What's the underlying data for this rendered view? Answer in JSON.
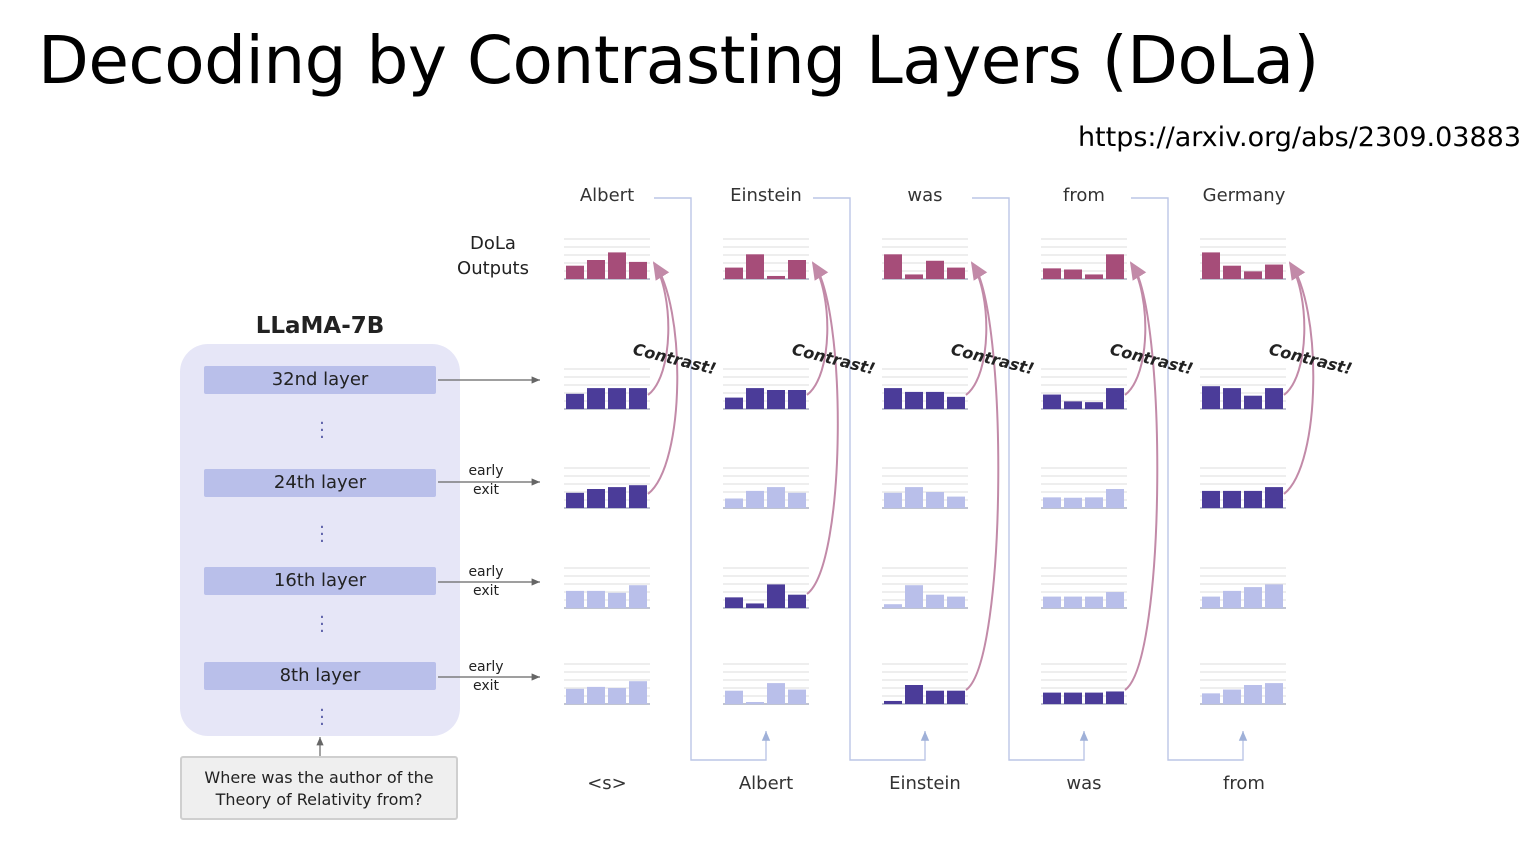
{
  "title": "Decoding by Contrasting Layers (DoLa)",
  "url": "https://arxiv.org/abs/2309.03883",
  "model": {
    "name": "LLaMA-7B",
    "layers": [
      "32nd layer",
      "24th layer",
      "16th layer",
      "8th layer"
    ],
    "early_exit_label": [
      "early",
      "exit"
    ]
  },
  "question": [
    "Where was the author of the",
    "Theory of Relativity from?"
  ],
  "dola_outputs_label": [
    "DoLa",
    "Outputs"
  ],
  "contrast_label": "Contrast!",
  "output_tokens": [
    "Albert",
    "Einstein",
    "was",
    "from",
    "Germany"
  ],
  "input_tokens": [
    "<s>",
    "Albert",
    "Einstein",
    "was",
    "from"
  ],
  "colors": {
    "output_bar": "#a64d79",
    "active_bar": "#4b3c99",
    "inactive_bar": "#b9bfea",
    "contrast_arrow": "#c28aa8",
    "model_box": "#e6e6f7"
  },
  "distributions": [
    {
      "token": "Albert",
      "dola": [
        0.35,
        0.5,
        0.7,
        0.45
      ],
      "rows": [
        [
          0.4,
          0.55,
          0.55,
          0.55
        ],
        [
          0.4,
          0.5,
          0.55,
          0.6
        ],
        [
          0.45,
          0.45,
          0.4,
          0.6
        ],
        [
          0.4,
          0.45,
          0.42,
          0.6
        ]
      ],
      "active_rows": [
        0,
        1
      ],
      "contrast_from_row": 1
    },
    {
      "token": "Einstein",
      "dola": [
        0.3,
        0.65,
        0.08,
        0.5
      ],
      "rows": [
        [
          0.3,
          0.55,
          0.5,
          0.5
        ],
        [
          0.25,
          0.45,
          0.55,
          0.4
        ],
        [
          0.28,
          0.12,
          0.62,
          0.35
        ],
        [
          0.35,
          0.05,
          0.55,
          0.38
        ]
      ],
      "active_rows": [
        0,
        2
      ],
      "contrast_from_row": 2
    },
    {
      "token": "was",
      "dola": [
        0.65,
        0.12,
        0.48,
        0.3
      ],
      "rows": [
        [
          0.55,
          0.45,
          0.45,
          0.32
        ],
        [
          0.4,
          0.55,
          0.42,
          0.3
        ],
        [
          0.1,
          0.6,
          0.35,
          0.3
        ],
        [
          0.08,
          0.5,
          0.35,
          0.35
        ]
      ],
      "active_rows": [
        0,
        3
      ],
      "contrast_from_row": 3
    },
    {
      "token": "from",
      "dola": [
        0.28,
        0.25,
        0.12,
        0.65
      ],
      "rows": [
        [
          0.38,
          0.2,
          0.18,
          0.55
        ],
        [
          0.28,
          0.27,
          0.28,
          0.5
        ],
        [
          0.3,
          0.3,
          0.3,
          0.42
        ],
        [
          0.3,
          0.3,
          0.3,
          0.33
        ]
      ],
      "active_rows": [
        0,
        3
      ],
      "contrast_from_row": 3
    },
    {
      "token": "Germany",
      "dola": [
        0.7,
        0.35,
        0.2,
        0.38
      ],
      "rows": [
        [
          0.6,
          0.55,
          0.35,
          0.55
        ],
        [
          0.45,
          0.45,
          0.45,
          0.55
        ],
        [
          0.3,
          0.45,
          0.55,
          0.62
        ],
        [
          0.28,
          0.38,
          0.5,
          0.55
        ]
      ],
      "active_rows": [
        0,
        1
      ],
      "contrast_from_row": 1
    }
  ]
}
